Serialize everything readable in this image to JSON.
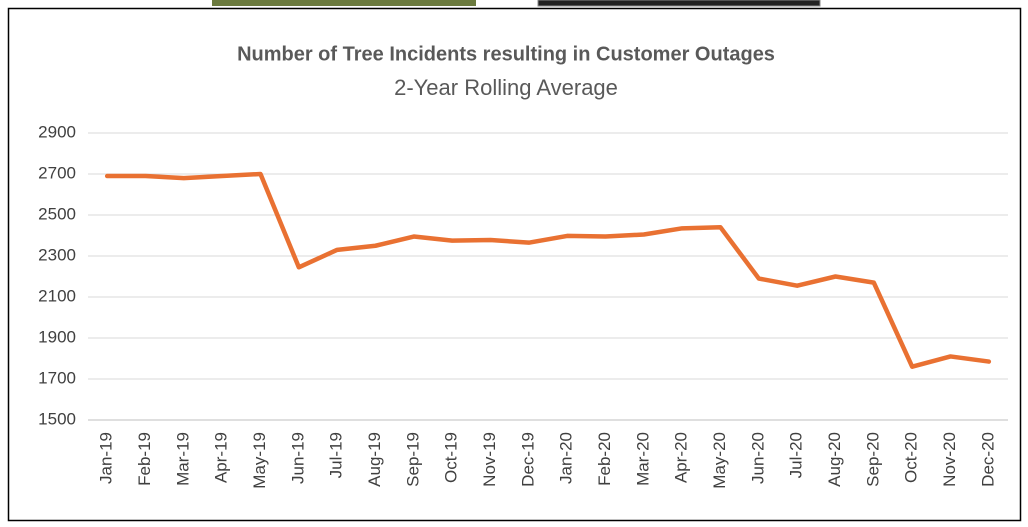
{
  "chart_data": {
    "type": "line",
    "title": "Number of Tree Incidents resulting in Customer Outages",
    "subtitle": "2-Year Rolling Average",
    "categories": [
      "Jan-19",
      "Feb-19",
      "Mar-19",
      "Apr-19",
      "May-19",
      "Jun-19",
      "Jul-19",
      "Aug-19",
      "Sep-19",
      "Oct-19",
      "Nov-19",
      "Dec-19",
      "Jan-20",
      "Feb-20",
      "Mar-20",
      "Apr-20",
      "May-20",
      "Jun-20",
      "Jul-20",
      "Aug-20",
      "Sep-20",
      "Oct-20",
      "Nov-20",
      "Dec-20"
    ],
    "values": [
      2690,
      2690,
      2680,
      2690,
      2700,
      2245,
      2330,
      2350,
      2395,
      2375,
      2378,
      2365,
      2398,
      2395,
      2405,
      2435,
      2440,
      2190,
      2155,
      2200,
      2170,
      1760,
      1810,
      1785
    ],
    "color": "#e97132",
    "ylim": [
      1500,
      2900
    ],
    "yticks": [
      1500,
      1700,
      1900,
      2100,
      2300,
      2500,
      2700,
      2900
    ],
    "grid": true
  }
}
